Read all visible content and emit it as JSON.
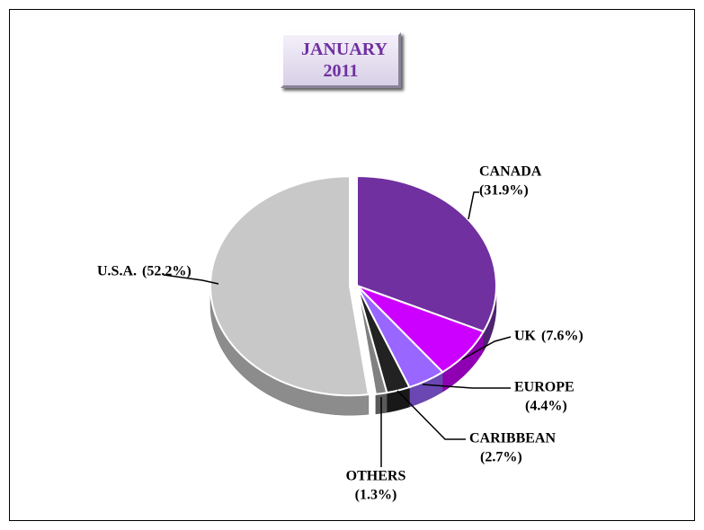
{
  "chart_data": {
    "type": "pie",
    "title": "JANUARY 2011",
    "categories": [
      "CANADA",
      "UK",
      "EUROPE",
      "CARIBBEAN",
      "OTHERS",
      "U.S.A."
    ],
    "values": [
      31.9,
      7.6,
      4.4,
      2.7,
      1.3,
      52.2
    ],
    "value_labels": [
      "(31.9%)",
      "(7.6%)",
      "(4.4%)",
      "(2.7%)",
      "(1.3%)",
      "(52.2%)"
    ],
    "colors": [
      "#7030a0",
      "#cc00ff",
      "#9966ff",
      "#222222",
      "#808080",
      "#c8c8c8"
    ]
  }
}
